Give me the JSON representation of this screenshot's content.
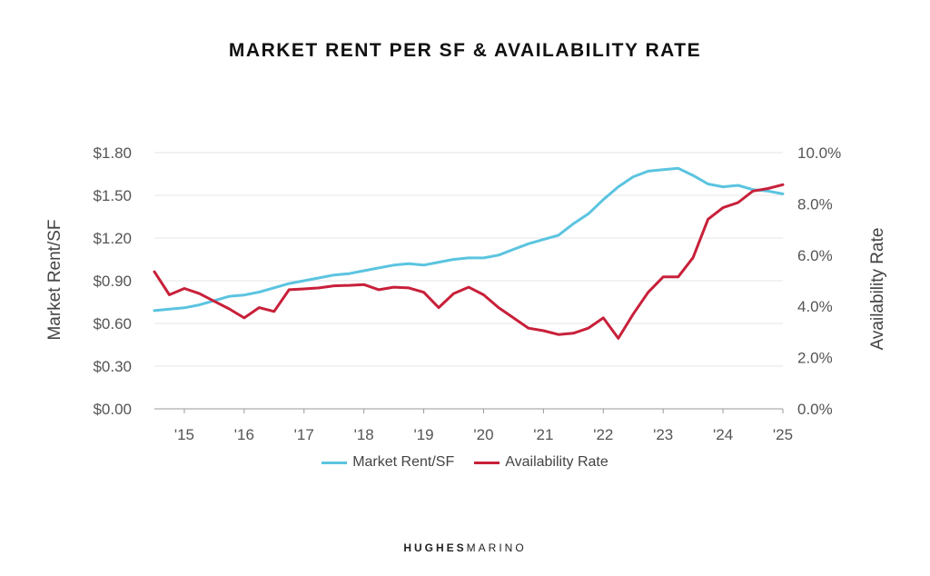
{
  "chart_data": {
    "type": "line",
    "title": "MARKET RENT PER SF & AVAILABILITY RATE",
    "ylabel_left": "Market Rent/SF",
    "ylabel_right": "Availability  Rate",
    "left_axis": {
      "ylim": [
        0,
        1.8
      ],
      "ticks": [
        0,
        0.3,
        0.6,
        0.9,
        1.2,
        1.5,
        1.8
      ],
      "tick_labels": [
        "$0.00",
        "$0.30",
        "$0.60",
        "$0.90",
        "$1.20",
        "$1.50",
        "$1.80"
      ]
    },
    "right_axis": {
      "ylim": [
        0,
        10
      ],
      "ticks": [
        0,
        2,
        4,
        6,
        8,
        10
      ],
      "tick_labels": [
        "0.0%",
        "2.0%",
        "4.0%",
        "6.0%",
        "8.0%",
        "10.0%"
      ]
    },
    "x_tick_labels": [
      "'15",
      "'16",
      "'17",
      "'18",
      "'19",
      "'20",
      "'21",
      "'22",
      "'23",
      "'24",
      "'25"
    ],
    "grid": true,
    "legend_position": "bottom",
    "series": [
      {
        "name": "Market Rent/SF",
        "axis": "left",
        "color": "#5bc4e0",
        "values": [
          0.69,
          0.7,
          0.71,
          0.73,
          0.76,
          0.79,
          0.8,
          0.82,
          0.85,
          0.88,
          0.9,
          0.92,
          0.94,
          0.95,
          0.97,
          0.99,
          1.01,
          1.02,
          1.01,
          1.03,
          1.05,
          1.06,
          1.06,
          1.08,
          1.12,
          1.16,
          1.19,
          1.22,
          1.3,
          1.37,
          1.47,
          1.56,
          1.63,
          1.67,
          1.68,
          1.69,
          1.64,
          1.58,
          1.56,
          1.57,
          1.54,
          1.53,
          1.51
        ]
      },
      {
        "name": "Availability Rate",
        "axis": "right",
        "color": "#c8203a",
        "values": [
          5.35,
          4.45,
          4.7,
          4.5,
          4.2,
          3.9,
          3.55,
          3.95,
          3.8,
          4.65,
          4.68,
          4.72,
          4.8,
          4.82,
          4.85,
          4.65,
          4.75,
          4.72,
          4.55,
          3.95,
          4.5,
          4.75,
          4.45,
          3.95,
          3.55,
          3.15,
          3.05,
          2.9,
          2.95,
          3.15,
          3.55,
          2.75,
          3.7,
          4.55,
          5.15,
          5.15,
          5.9,
          7.4,
          7.85,
          8.05,
          8.5,
          8.6,
          8.75
        ]
      }
    ]
  },
  "brand": {
    "first": "HUGHES",
    "second": "MARINO"
  }
}
